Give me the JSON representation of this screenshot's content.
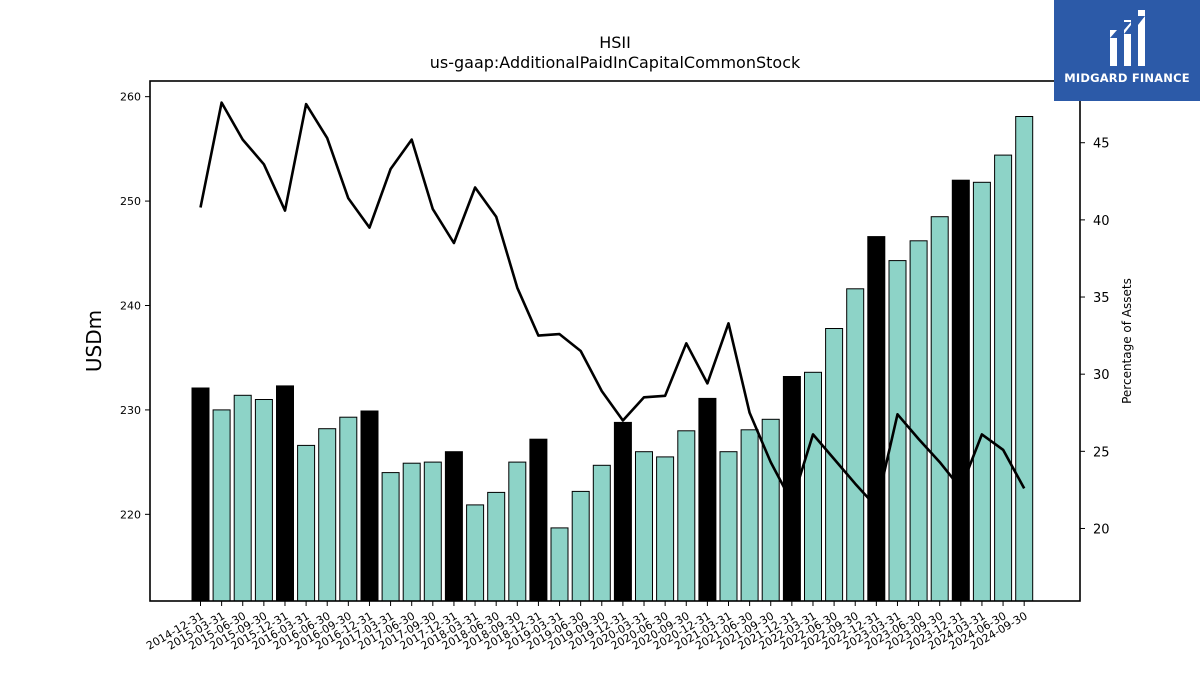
{
  "chart_data": {
    "type": "bar",
    "title": "HSII",
    "subtitle": "us-gaap:AdditionalPaidInCapitalCommonStock",
    "ylabel": "USDm",
    "y2label": "Percentage of Assets",
    "ylim": [
      211.7,
      261.5
    ],
    "y2lim": [
      15.3,
      49.0
    ],
    "yticks": [
      220,
      230,
      240,
      250,
      260
    ],
    "y2ticks": [
      20,
      25,
      30,
      35,
      40,
      45
    ],
    "grid": false,
    "categories": [
      "2014-12-31",
      "2015-03-31",
      "2015-06-30",
      "2015-09-30",
      "2015-12-31",
      "2016-03-31",
      "2016-06-30",
      "2016-09-30",
      "2016-12-31",
      "2017-03-31",
      "2017-06-30",
      "2017-09-30",
      "2017-12-31",
      "2018-03-31",
      "2018-06-30",
      "2018-09-30",
      "2018-12-31",
      "2019-03-31",
      "2019-06-30",
      "2019-09-30",
      "2019-12-31",
      "2020-03-31",
      "2020-06-30",
      "2020-09-30",
      "2020-12-31",
      "2021-03-31",
      "2021-06-30",
      "2021-09-30",
      "2021-12-31",
      "2022-03-31",
      "2022-06-30",
      "2022-09-30",
      "2022-12-31",
      "2023-03-31",
      "2023-06-30",
      "2023-09-30",
      "2023-12-31",
      "2024-03-31",
      "2024-06-30",
      "2024-09-30"
    ],
    "series": [
      {
        "kind": "bar",
        "axis": "left",
        "values": [
          232.1,
          230.0,
          231.4,
          231.0,
          232.3,
          226.6,
          228.2,
          229.3,
          229.9,
          224.0,
          224.9,
          225.0,
          226.0,
          220.9,
          222.1,
          225.0,
          227.2,
          218.7,
          222.2,
          224.7,
          228.8,
          226.0,
          225.5,
          228.0,
          231.1,
          226.0,
          228.1,
          229.1,
          233.2,
          233.6,
          237.8,
          241.6,
          246.6,
          244.3,
          246.2,
          248.5,
          252.0,
          251.8,
          254.4,
          258.1
        ],
        "colors": {
          "annual": "#000000",
          "quarterly": "#8dd3c7"
        },
        "annual_flags": [
          1,
          0,
          0,
          0,
          1,
          0,
          0,
          0,
          1,
          0,
          0,
          0,
          1,
          0,
          0,
          0,
          1,
          0,
          0,
          0,
          1,
          0,
          0,
          0,
          1,
          0,
          0,
          0,
          1,
          0,
          0,
          0,
          1,
          0,
          0,
          0,
          1,
          0,
          0,
          0
        ]
      },
      {
        "kind": "line",
        "axis": "right",
        "color": "#000000",
        "values": [
          40.8,
          47.6,
          45.2,
          43.6,
          40.6,
          47.5,
          45.3,
          41.4,
          39.5,
          43.3,
          45.2,
          40.7,
          38.5,
          42.1,
          40.2,
          35.6,
          32.5,
          32.6,
          31.5,
          28.9,
          27.0,
          28.5,
          28.6,
          32.0,
          29.4,
          33.3,
          27.5,
          24.3,
          21.7,
          26.1,
          24.5,
          22.9,
          21.4,
          27.4,
          25.8,
          24.3,
          22.6,
          26.1,
          25.1,
          22.6
        ]
      }
    ]
  },
  "logo": {
    "brand": "MIDGARD FINANCE",
    "icon": "midgard-logo-icon",
    "bg": "#2c5aa8"
  }
}
